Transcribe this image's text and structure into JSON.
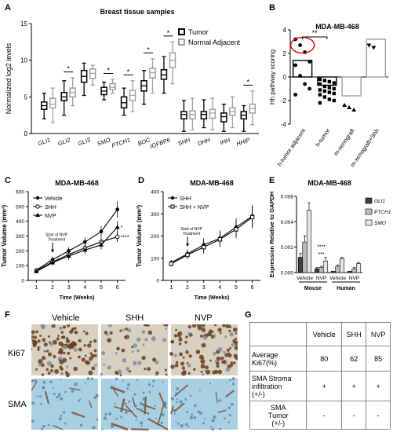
{
  "panel_letters": {
    "a": "A",
    "b": "B",
    "c": "C",
    "d": "D",
    "e": "E",
    "f": "F",
    "g": "G"
  },
  "chart_data": [
    {
      "id": "A",
      "type": "box",
      "title": "Breast tissue samples",
      "ylabel": "Normalized log2 levels",
      "ylim": [
        0,
        15
      ],
      "yticks": [
        0,
        5,
        10,
        15
      ],
      "categories": [
        "GLI1",
        "GLI2",
        "GLI3",
        "SMO",
        "PTCH1",
        "BOC",
        "IGFBP6",
        "SHH",
        "DHH",
        "IHH",
        "HHIP"
      ],
      "series": [
        {
          "name": "Tumor",
          "color": "#000000",
          "boxes": [
            {
              "min": 2,
              "q1": 3.3,
              "med": 3.8,
              "q3": 4.3,
              "max": 5.5
            },
            {
              "min": 2.5,
              "q1": 4.5,
              "med": 5.0,
              "q3": 5.6,
              "max": 7.2
            },
            {
              "min": 5.2,
              "q1": 7.0,
              "med": 7.8,
              "q3": 8.6,
              "max": 9.6
            },
            {
              "min": 4.6,
              "q1": 5.3,
              "med": 5.8,
              "q3": 6.3,
              "max": 7.0
            },
            {
              "min": 2.5,
              "q1": 3.5,
              "med": 4.2,
              "q3": 5.0,
              "max": 6.2
            },
            {
              "min": 4.0,
              "q1": 5.8,
              "med": 6.5,
              "q3": 7.2,
              "max": 8.6
            },
            {
              "min": 5.5,
              "q1": 7.4,
              "med": 8.0,
              "q3": 8.7,
              "max": 10.5
            },
            {
              "min": 0.3,
              "q1": 2.0,
              "med": 2.6,
              "q3": 3.0,
              "max": 4.5
            },
            {
              "min": 0.8,
              "q1": 2.0,
              "med": 2.6,
              "q3": 3.0,
              "max": 4.6
            },
            {
              "min": 0.3,
              "q1": 1.6,
              "med": 2.3,
              "q3": 2.8,
              "max": 4.0
            },
            {
              "min": 0.3,
              "q1": 2.0,
              "med": 2.5,
              "q3": 3.0,
              "max": 3.8
            }
          ]
        },
        {
          "name": "Normal Adjacent",
          "color": "#a0a0a0",
          "boxes": [
            {
              "min": 1.5,
              "q1": 3.5,
              "med": 4.0,
              "q3": 4.8,
              "max": 6.2
            },
            {
              "min": 3.8,
              "q1": 5.0,
              "med": 5.6,
              "q3": 6.2,
              "max": 7.6
            },
            {
              "min": 6.6,
              "q1": 7.5,
              "med": 8.2,
              "q3": 8.8,
              "max": 9.3
            },
            {
              "min": 5.5,
              "q1": 6.0,
              "med": 6.3,
              "q3": 6.8,
              "max": 7.4
            },
            {
              "min": 3.0,
              "q1": 4.5,
              "med": 5.2,
              "q3": 5.9,
              "max": 7.2
            },
            {
              "min": 5.5,
              "q1": 7.6,
              "med": 8.3,
              "q3": 8.9,
              "max": 10.2
            },
            {
              "min": 6.8,
              "q1": 9.0,
              "med": 10.0,
              "q3": 11.0,
              "max": 12.5
            },
            {
              "min": 0.5,
              "q1": 2.0,
              "med": 2.6,
              "q3": 3.1,
              "max": 4.8
            },
            {
              "min": 0.5,
              "q1": 2.1,
              "med": 2.8,
              "q3": 3.3,
              "max": 4.8
            },
            {
              "min": 0.8,
              "q1": 2.5,
              "med": 3.0,
              "q3": 3.5,
              "max": 5.0
            },
            {
              "min": 1.2,
              "q1": 2.8,
              "med": 3.4,
              "q3": 4.0,
              "max": 5.8
            }
          ]
        }
      ],
      "significance": [
        {
          "label": "*",
          "index": 1
        },
        {
          "label": "*",
          "index": 3
        },
        {
          "label": "*",
          "index": 4
        },
        {
          "label": "*",
          "index": 5
        },
        {
          "label": "*",
          "index": 6
        },
        {
          "label": "*",
          "index": 10
        }
      ],
      "legend_position": "top-right"
    },
    {
      "id": "B",
      "type": "bar-scatter",
      "title": "MDA-MB-468",
      "ylabel": "Hh pathway scoring",
      "ylim": [
        -4,
        4
      ],
      "yticks": [
        -4,
        -2,
        0,
        2,
        4
      ],
      "categories": [
        "h-tumor adjacent",
        "h-tumor",
        "m-xenograft",
        "m-xenograft+Shh"
      ],
      "bars": [
        1.4,
        -0.7,
        -1.6,
        3.2
      ],
      "bar_colors": [
        "#000000",
        "#000000",
        "#a0a0a0",
        "#a0a0a0"
      ],
      "points": [
        [
          3.2,
          2.7,
          2.1,
          1.3,
          1.0,
          0.1,
          -0.6,
          -1.0,
          -1.5
        ],
        [
          -0.2,
          -0.3,
          -0.4,
          -0.5,
          -0.6,
          -0.8,
          -0.9,
          -1.0,
          -1.1,
          -1.2,
          -1.3,
          -1.4,
          -1.5,
          -1.7,
          -1.9,
          -2.0,
          -2.2
        ],
        [
          -2.4,
          -2.6,
          -2.8
        ],
        [
          2.7,
          2.5
        ]
      ],
      "point_markers": [
        "circle",
        "square",
        "triangle-up",
        "triangle-down"
      ],
      "significance": [
        {
          "label": "**",
          "from": 0,
          "to": 1
        }
      ]
    },
    {
      "id": "C",
      "type": "line",
      "title": "MDA-MB-468",
      "xlabel": "Time (Weeks)",
      "ylabel": "Tumor Volume (mm³)",
      "x": [
        1,
        2,
        3,
        4,
        5,
        6
      ],
      "xlim": [
        0.5,
        6.5
      ],
      "ylim": [
        0,
        600
      ],
      "yticks": [
        0,
        100,
        200,
        300,
        400,
        500,
        600
      ],
      "series": [
        {
          "name": "Vehicle",
          "marker": "circle",
          "values": [
            70,
            140,
            200,
            260,
            330,
            480
          ],
          "errors": [
            10,
            20,
            25,
            30,
            40,
            55
          ]
        },
        {
          "name": "SHH",
          "marker": "circle-open",
          "values": [
            65,
            125,
            175,
            220,
            260,
            295
          ],
          "errors": [
            10,
            20,
            25,
            25,
            30,
            35
          ]
        },
        {
          "name": "NVP",
          "marker": "triangle",
          "values": [
            60,
            120,
            165,
            205,
            240,
            360
          ],
          "errors": [
            10,
            20,
            25,
            25,
            30,
            40
          ]
        }
      ],
      "annotation": {
        "text": [
          "Start of NVP",
          "Treatment"
        ],
        "x": 2
      },
      "significance": [
        {
          "label": "*",
          "x": 6,
          "y": 360
        },
        {
          "label": "****",
          "x": 6,
          "y": 295
        }
      ],
      "legend_position": "top-left"
    },
    {
      "id": "D",
      "type": "line",
      "title": "MDA-MB-468",
      "xlabel": "Time (Weeks)",
      "ylabel": "Tumor Volume (mm³)",
      "x": [
        1,
        2,
        3,
        4,
        5,
        6
      ],
      "xlim": [
        0.5,
        6.5
      ],
      "ylim": [
        0,
        400
      ],
      "yticks": [
        0,
        100,
        200,
        300,
        400
      ],
      "series": [
        {
          "name": "SHH",
          "marker": "circle",
          "values": [
            80,
            120,
            160,
            190,
            240,
            290
          ],
          "errors": [
            12,
            20,
            30,
            35,
            40,
            50
          ]
        },
        {
          "name": "SHH + NVP",
          "marker": "square-open",
          "values": [
            75,
            115,
            150,
            185,
            230,
            285
          ],
          "errors": [
            12,
            20,
            30,
            35,
            40,
            50
          ]
        }
      ],
      "annotation": {
        "text": [
          "Start of NVP",
          "Treatment"
        ],
        "x": 2
      },
      "legend_position": "top-left"
    },
    {
      "id": "E",
      "type": "bar",
      "title": "MDA-MB-468",
      "ylabel": "Expression Relative to GAPDH",
      "ylim": [
        0,
        0.006
      ],
      "yticks": [
        "0.000",
        "0.002",
        "0.004",
        "0.006"
      ],
      "ytick_values": [
        0,
        0.002,
        0.004,
        0.006
      ],
      "categories": [
        "Vehicle",
        "NVP",
        "Vehicle",
        "NVP"
      ],
      "groups": [
        "Mouse",
        "Human"
      ],
      "series": [
        {
          "name": "GLI1",
          "color": "#404040",
          "values": [
            0.0012,
            0.0003,
            0.0001,
            0.0001
          ],
          "errors": [
            0.0003,
            0.0001,
            0,
            0
          ]
        },
        {
          "name": "PTCH1",
          "color": "#bdbdbd",
          "values": [
            0.0024,
            0.0004,
            0.0005,
            0.0003
          ],
          "errors": [
            0.0005,
            0.0001,
            0.0001,
            0.0001
          ]
        },
        {
          "name": "SMO",
          "color": "#e6e6e6",
          "values": [
            0.0049,
            0.0009,
            0.0011,
            0.0007
          ],
          "errors": [
            0.0006,
            0.0003,
            0.0001,
            0.0001
          ]
        }
      ],
      "significance": [
        {
          "label": "***",
          "cat": 1,
          "value": 0.0013
        },
        {
          "label": "****",
          "cat": 1,
          "value": 0.0019
        }
      ],
      "legend_position": "right"
    }
  ],
  "panel_f": {
    "columns": [
      "Vehicle",
      "SHH",
      "NVP"
    ],
    "rows": [
      "Ki67",
      "SMA"
    ]
  },
  "panel_g": {
    "header": [
      "",
      "Vehicle",
      "SHH",
      "NVP"
    ],
    "rows": [
      {
        "label": [
          "Average",
          "Ki67(%)"
        ],
        "values": [
          "80",
          "62",
          "85"
        ]
      },
      {
        "label": [
          "SMA Stroma",
          "infiltration",
          "(+/-)"
        ],
        "values": [
          "+",
          "+",
          "+"
        ]
      },
      {
        "label": [
          "SMA",
          "Tumor",
          "(+/-)"
        ],
        "values": [
          "-",
          "-",
          "-"
        ]
      }
    ]
  },
  "colors": {
    "ki67_stain": "#6b3e1f",
    "ki67_bg": "#d8d0c0",
    "sma_bg": "#a9cfe3",
    "sma_stain": "#7a4a2a",
    "circle_highlight": "#e01010"
  }
}
